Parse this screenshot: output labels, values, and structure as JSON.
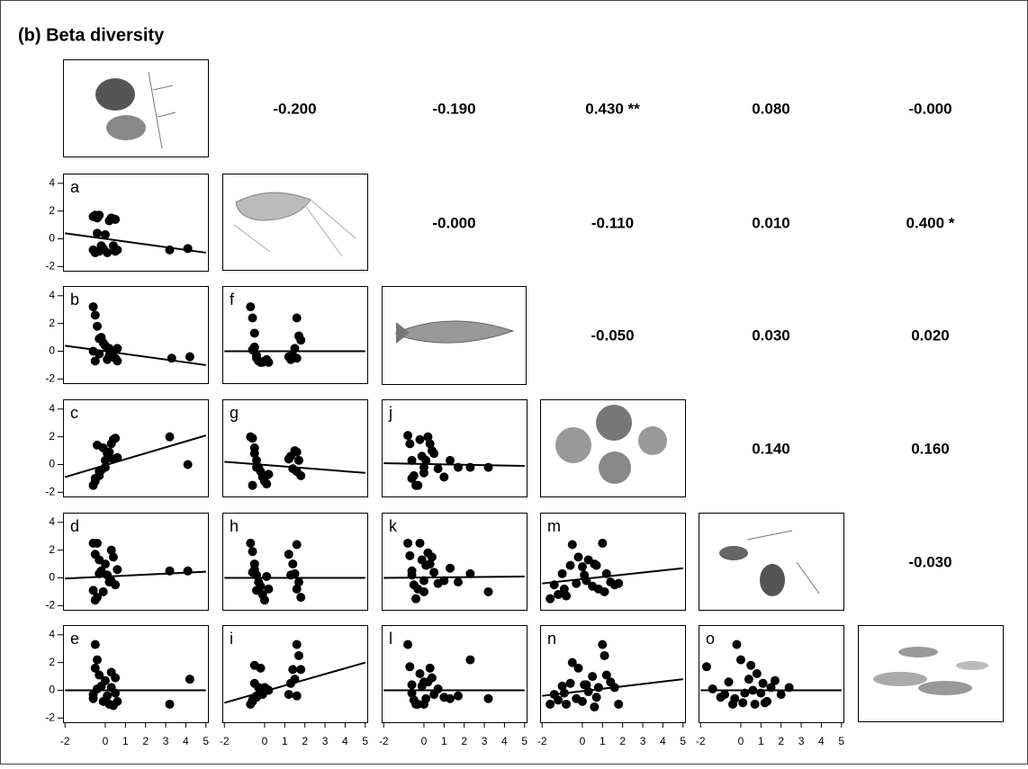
{
  "title": "(b) Beta diversity",
  "correlations": [
    [
      "-0.200",
      "-0.190",
      "0.430 **",
      "0.080",
      "-0.000"
    ],
    [
      "-0.000",
      "-0.110",
      "0.010",
      "0.400 *"
    ],
    [
      "-0.050",
      "0.030",
      "0.020"
    ],
    [
      "0.140",
      "0.160"
    ],
    [
      "-0.030"
    ]
  ],
  "chart_data": [
    {
      "type": "scatter",
      "label": "a",
      "xlim": [
        -2.1,
        5.1
      ],
      "ylim": [
        -2.3,
        4.7
      ],
      "yticks": [
        -2,
        0,
        2,
        4
      ],
      "x": [
        -0.6,
        -0.5,
        -0.4,
        -0.3,
        -0.2,
        -0.6,
        -0.5,
        -0.3,
        -0.1,
        0,
        0.2,
        0.3,
        0.5,
        0.6,
        0.4,
        -0.4,
        0.1,
        0.5,
        3.2,
        4.1
      ],
      "y": [
        1.6,
        1.7,
        1.5,
        1.7,
        -0.5,
        -0.8,
        -1,
        -0.9,
        -0.7,
        0.3,
        1.3,
        1.5,
        1.4,
        -0.8,
        -0.5,
        0.4,
        -1,
        -0.9,
        -0.8,
        -0.7
      ],
      "fit_x": [
        -2,
        5
      ],
      "fit_y": [
        0.4,
        -1
      ]
    },
    {
      "type": "scatter",
      "label": "b",
      "xlim": [
        -2.1,
        5.1
      ],
      "ylim": [
        -2.3,
        4.7
      ],
      "yticks": [
        -2,
        0,
        2,
        4
      ],
      "x": [
        -0.6,
        -0.5,
        -0.4,
        -0.3,
        -0.2,
        -0.1,
        0,
        0.2,
        0.3,
        0.5,
        0.6,
        -0.5,
        -0.3,
        0.1,
        0.4,
        0.6,
        -0.6,
        0.2,
        3.3,
        4.2
      ],
      "y": [
        3.2,
        2.6,
        1.8,
        0.9,
        1,
        0.6,
        0.4,
        0.2,
        -0.2,
        -0.5,
        0.2,
        -0.7,
        -0.2,
        -0.6,
        -0.4,
        -0.7,
        0,
        -0.3,
        -0.5,
        -0.4
      ],
      "fit_x": [
        -2,
        5
      ],
      "fit_y": [
        0.4,
        -1
      ]
    },
    {
      "type": "scatter",
      "label": "c",
      "xlim": [
        -2.1,
        5.1
      ],
      "ylim": [
        -2.3,
        4.7
      ],
      "yticks": [
        -2,
        0,
        2,
        4
      ],
      "x": [
        -0.6,
        -0.5,
        -0.4,
        -0.3,
        -0.2,
        -0.1,
        0,
        0.1,
        0.2,
        0.3,
        0.4,
        0.5,
        0.6,
        -0.5,
        -0.3,
        0,
        0.2,
        0.4,
        3.2,
        4.1
      ],
      "y": [
        -1.5,
        -1.2,
        1.4,
        -0.8,
        -0.4,
        1.2,
        0.3,
        0.8,
        0.6,
        1.5,
        1.8,
        1.9,
        0.5,
        -1,
        -0.5,
        -0.2,
        0.9,
        0.4,
        2,
        0
      ],
      "fit_x": [
        -2,
        5
      ],
      "fit_y": [
        -0.9,
        2.1
      ]
    },
    {
      "type": "scatter",
      "label": "d",
      "xlim": [
        -2.1,
        5.1
      ],
      "ylim": [
        -2.3,
        4.7
      ],
      "yticks": [
        -2,
        0,
        2,
        4
      ],
      "x": [
        -0.6,
        -0.4,
        -0.5,
        -0.3,
        0,
        -0.2,
        0.1,
        0.3,
        0.5,
        -0.6,
        -0.4,
        -0.5,
        0.3,
        0.4,
        0.6,
        0.2,
        -0.1,
        -0.3,
        3.2,
        4.1
      ],
      "y": [
        2.5,
        2.5,
        1.7,
        1.3,
        1,
        0.5,
        0.2,
        -0.2,
        -0.5,
        -0.9,
        -1.4,
        -1.6,
        2,
        1.5,
        0.6,
        -0.3,
        -1,
        0.3,
        0.5,
        0.5
      ],
      "fit_x": [
        -2,
        5
      ],
      "fit_y": [
        -0.05,
        0.45
      ]
    },
    {
      "type": "scatter",
      "label": "e",
      "xlim": [
        -2.1,
        5.1
      ],
      "ylim": [
        -2.3,
        4.7
      ],
      "yticks": [
        -2,
        0,
        2,
        4
      ],
      "xticks": [
        -2,
        0,
        1,
        2,
        3,
        4,
        5
      ],
      "x": [
        -0.5,
        -0.4,
        -0.5,
        -0.3,
        0,
        0.3,
        0.5,
        -0.6,
        -0.1,
        0.2,
        0.4,
        0.3,
        0.5,
        -0.2,
        -0.6,
        0.6,
        0.1,
        -0.4,
        3.2,
        4.2
      ],
      "y": [
        3.3,
        2.2,
        1.6,
        1.1,
        0.7,
        0.2,
        -0.2,
        -0.6,
        -0.8,
        -1,
        -1.1,
        1.3,
        0.9,
        0.3,
        -0.3,
        -0.8,
        -0.4,
        0.1,
        -1,
        0.8
      ],
      "fit_x": [
        -2,
        5
      ],
      "fit_y": [
        0,
        0
      ]
    },
    {
      "type": "scatter",
      "label": "f",
      "xlim": [
        -2.1,
        5.1
      ],
      "ylim": [
        -2.3,
        4.7
      ],
      "x": [
        -0.7,
        -0.6,
        -0.5,
        -0.5,
        -0.4,
        -0.3,
        -0.2,
        -0.1,
        0,
        0.1,
        0.2,
        -0.6,
        -0.4,
        1.2,
        1.4,
        1.5,
        1.6,
        1.7,
        1.8,
        1.3,
        1.6
      ],
      "y": [
        3.2,
        2.4,
        1.3,
        0.3,
        -0.5,
        -0.7,
        -0.8,
        -0.8,
        -0.7,
        -0.6,
        -0.8,
        0.1,
        -0.3,
        -0.4,
        -0.3,
        0.2,
        2.4,
        1.1,
        0.8,
        -0.6,
        -0.5
      ],
      "fit_x": [
        -2,
        5
      ],
      "fit_y": [
        0,
        0
      ]
    },
    {
      "type": "scatter",
      "label": "g",
      "xlim": [
        -2.1,
        5.1
      ],
      "ylim": [
        -2.3,
        4.7
      ],
      "x": [
        -0.7,
        -0.6,
        -0.5,
        -0.5,
        -0.4,
        -0.3,
        -0.2,
        -0.1,
        0,
        0.1,
        0.2,
        -0.6,
        -0.4,
        1.2,
        1.4,
        1.5,
        1.6,
        1.7,
        1.8,
        1.3,
        1.6
      ],
      "y": [
        2,
        1.9,
        1.2,
        0.8,
        0.3,
        -0.2,
        -0.5,
        -0.9,
        -1.2,
        -1.4,
        -0.7,
        -1.5,
        -0.2,
        0.4,
        -0.3,
        1,
        0.9,
        0.3,
        -0.8,
        0.6,
        -0.5
      ],
      "fit_x": [
        -2,
        5
      ],
      "fit_y": [
        0.2,
        -0.6
      ]
    },
    {
      "type": "scatter",
      "label": "h",
      "xlim": [
        -2.1,
        5.1
      ],
      "ylim": [
        -2.3,
        4.7
      ],
      "x": [
        -0.7,
        -0.6,
        -0.5,
        -0.5,
        -0.4,
        -0.3,
        -0.2,
        -0.1,
        0,
        0.1,
        0.2,
        -0.6,
        -0.4,
        1.2,
        1.4,
        1.5,
        1.6,
        1.7,
        1.8,
        1.3,
        1.6
      ],
      "y": [
        2.5,
        1.9,
        1,
        0.6,
        0.2,
        -0.3,
        -0.6,
        -1.2,
        -1.6,
        0.1,
        -0.8,
        0.4,
        -0.9,
        1.7,
        1,
        0.3,
        2.4,
        -0.3,
        -1.4,
        0.2,
        -0.8
      ],
      "fit_x": [
        -2,
        5
      ],
      "fit_y": [
        0,
        0
      ]
    },
    {
      "type": "scatter",
      "label": "i",
      "xlim": [
        -2.1,
        5.1
      ],
      "ylim": [
        -2.3,
        4.7
      ],
      "xticks": [
        -2,
        0,
        1,
        2,
        3,
        4,
        5
      ],
      "x": [
        -0.7,
        -0.6,
        -0.5,
        -0.5,
        -0.4,
        -0.3,
        -0.2,
        -0.1,
        0,
        0.1,
        0.2,
        -0.6,
        -0.4,
        1.2,
        1.4,
        1.5,
        1.6,
        1.7,
        1.8,
        1.3,
        1.6
      ],
      "y": [
        -1,
        -0.7,
        0.5,
        1.8,
        -0.5,
        0.2,
        1.6,
        -0.3,
        0.2,
        0.1,
        0,
        -0.8,
        -0.4,
        -0.3,
        1.5,
        0.8,
        3.3,
        2.5,
        1.5,
        0.5,
        -0.4
      ],
      "fit_x": [
        -2,
        5
      ],
      "fit_y": [
        -0.9,
        2
      ]
    },
    {
      "type": "scatter",
      "label": "j",
      "xlim": [
        -2.1,
        5.1
      ],
      "ylim": [
        -2.3,
        4.7
      ],
      "x": [
        -0.8,
        -0.7,
        -0.6,
        -0.5,
        -0.4,
        -0.3,
        -0.2,
        -0.1,
        0,
        0.1,
        0.2,
        0.3,
        0.5,
        0.7,
        1,
        1.3,
        1.7,
        2.3,
        3.2,
        -0.6,
        0.4,
        0
      ],
      "y": [
        2.1,
        1.5,
        0.3,
        -0.8,
        -1.5,
        -1.5,
        1.8,
        0.6,
        -0.6,
        0.3,
        2,
        1.5,
        0.8,
        -0.3,
        -0.9,
        0.3,
        -0.2,
        -0.2,
        -0.2,
        -1,
        1,
        -0.2
      ],
      "fit_x": [
        -2,
        5
      ],
      "fit_y": [
        0.1,
        -0.1
      ]
    },
    {
      "type": "scatter",
      "label": "k",
      "xlim": [
        -2.1,
        5.1
      ],
      "ylim": [
        -2.3,
        4.7
      ],
      "x": [
        -0.8,
        -0.7,
        -0.6,
        -0.5,
        -0.4,
        -0.3,
        -0.2,
        -0.1,
        0,
        0.1,
        0.2,
        0.3,
        0.5,
        0.7,
        1,
        1.3,
        1.7,
        2.3,
        3.2,
        -0.6,
        0.4,
        0
      ],
      "y": [
        2.5,
        1.6,
        0.5,
        -0.5,
        -1.5,
        -0.8,
        2.5,
        1.3,
        -0.2,
        0.9,
        1.8,
        1,
        0.4,
        -0.4,
        -0.2,
        0.7,
        -0.3,
        0.3,
        -1,
        0.2,
        1.5,
        -1
      ],
      "fit_x": [
        -2,
        5
      ],
      "fit_y": [
        0,
        0.1
      ]
    },
    {
      "type": "scatter",
      "label": "l",
      "xlim": [
        -2.1,
        5.1
      ],
      "ylim": [
        -2.3,
        4.7
      ],
      "xticks": [
        -2,
        0,
        1,
        2,
        3,
        4,
        5
      ],
      "x": [
        -0.8,
        -0.7,
        -0.6,
        -0.5,
        -0.4,
        -0.3,
        -0.2,
        -0.1,
        0,
        0.1,
        0.2,
        0.3,
        0.5,
        0.7,
        1,
        1.3,
        1.7,
        2.3,
        3.2,
        -0.6,
        0.4,
        0
      ],
      "y": [
        3.3,
        1.7,
        0.4,
        -0.7,
        -1,
        -1,
        1.2,
        0.3,
        0.6,
        -0.6,
        0.6,
        1.6,
        -0.3,
        0.1,
        -0.5,
        -0.6,
        -0.4,
        2.2,
        -0.6,
        -0.2,
        0.9,
        -1
      ],
      "fit_x": [
        -2,
        5
      ],
      "fit_y": [
        0,
        0
      ]
    },
    {
      "type": "scatter",
      "label": "m",
      "xlim": [
        -2.1,
        5.1
      ],
      "ylim": [
        -2.3,
        4.7
      ],
      "x": [
        -1.6,
        -1.4,
        -1.2,
        -1,
        -0.8,
        -0.6,
        -0.5,
        -0.3,
        -0.2,
        0,
        0.1,
        0.3,
        0.5,
        0.6,
        0.8,
        1,
        1.2,
        1.4,
        1.6,
        1.8,
        -0.9,
        0.2,
        0.7,
        1.1
      ],
      "y": [
        -1.5,
        -0.5,
        -1.2,
        0.3,
        -1.3,
        0.9,
        2.4,
        -0.4,
        1.5,
        0.8,
        0.2,
        1.3,
        -0.6,
        1,
        -0.8,
        2.5,
        0.3,
        -0.3,
        -0.5,
        -0.4,
        -0.8,
        -0.2,
        0.9,
        -1
      ],
      "fit_x": [
        -2,
        5
      ],
      "fit_y": [
        -0.4,
        0.7
      ]
    },
    {
      "type": "scatter",
      "label": "n",
      "xlim": [
        -2.1,
        5.1
      ],
      "ylim": [
        -2.3,
        4.7
      ],
      "xticks": [
        -2,
        0,
        1,
        2,
        3,
        4,
        5
      ],
      "x": [
        -1.6,
        -1.4,
        -1.2,
        -1,
        -0.8,
        -0.6,
        -0.5,
        -0.3,
        -0.2,
        0,
        0.1,
        0.3,
        0.5,
        0.6,
        0.8,
        1,
        1.2,
        1.4,
        1.6,
        1.8,
        -0.9,
        0.2,
        0.7,
        1.1
      ],
      "y": [
        -1,
        -0.3,
        -0.7,
        0.3,
        -1,
        0.5,
        2,
        -0.6,
        1.6,
        -0.8,
        0.4,
        -0.1,
        1,
        -1.2,
        0.2,
        3.3,
        1.1,
        0.6,
        0.2,
        -1,
        -0.2,
        0.4,
        -0.5,
        2.5
      ],
      "fit_x": [
        -2,
        5
      ],
      "fit_y": [
        -0.4,
        0.8
      ]
    },
    {
      "type": "scatter",
      "label": "o",
      "xlim": [
        -2.1,
        5.1
      ],
      "ylim": [
        -2.3,
        4.7
      ],
      "xticks": [
        -2,
        0,
        1,
        2,
        3,
        4,
        5
      ],
      "x": [
        -1.7,
        -1.4,
        -1,
        -0.8,
        -0.6,
        -0.4,
        -0.2,
        0,
        0.1,
        0.2,
        0.4,
        0.5,
        0.7,
        0.8,
        1,
        1.1,
        1.3,
        1.5,
        1.7,
        2,
        2.4,
        -0.3,
        0.6,
        1.2
      ],
      "y": [
        1.7,
        0.1,
        -0.5,
        -0.3,
        0.6,
        -1,
        3.3,
        2.2,
        -0.9,
        -0.2,
        0.8,
        1.8,
        -1,
        1.2,
        -0.2,
        0.5,
        -0.8,
        0.2,
        0.7,
        -0.3,
        0.2,
        -0.6,
        0,
        -0.9
      ],
      "fit_x": [
        -2,
        5
      ],
      "fit_y": [
        0,
        0
      ]
    }
  ]
}
